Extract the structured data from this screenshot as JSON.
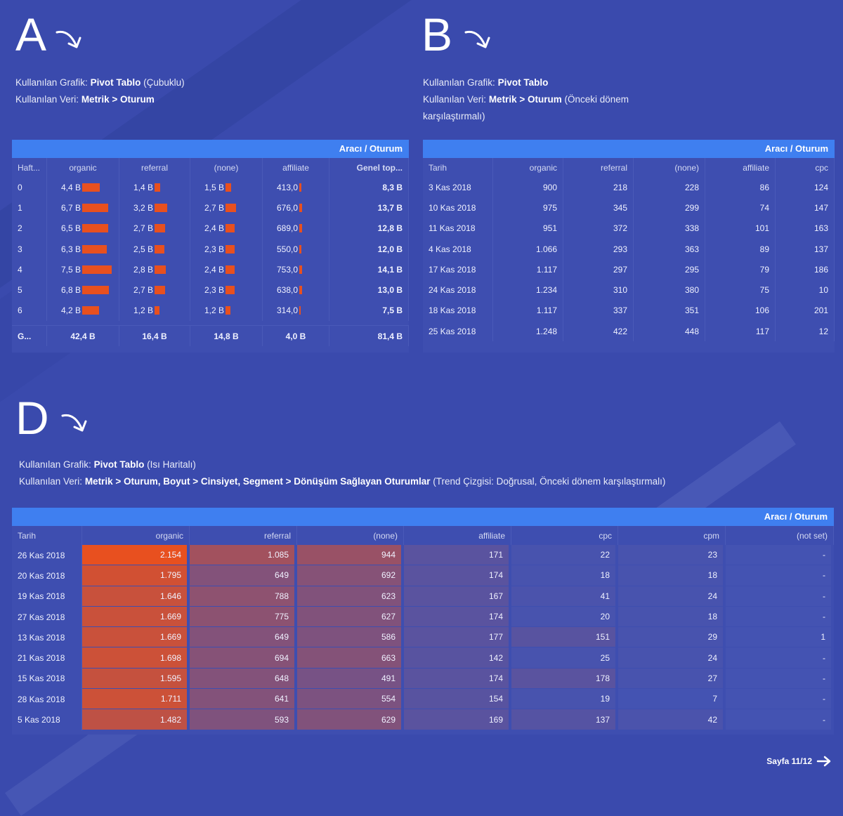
{
  "sectionA": {
    "letter": "A",
    "line1_prefix": "Kullanılan Grafik: ",
    "line1_bold": "Pivot Tablo",
    "line1_suffix": " (Çubuklu)",
    "line2_prefix": "Kullanılan Veri: ",
    "line2_bold": "Metrik > Oturum",
    "line2_suffix": "",
    "table_header": "Aracı / Oturum",
    "columns": [
      "Haft...",
      "organic",
      "referral",
      "(none)",
      "affiliate",
      "Genel top..."
    ],
    "rows": [
      {
        "week": "0",
        "organic": "4,4 B",
        "organic_frac": 0.59,
        "referral": "1,4 B",
        "referral_frac": 0.19,
        "none": "1,5 B",
        "none_frac": 0.2,
        "affiliate": "413,0",
        "affiliate_frac": 0.06,
        "total": "8,3 B"
      },
      {
        "week": "1",
        "organic": "6,7 B",
        "organic_frac": 0.89,
        "referral": "3,2 B",
        "referral_frac": 0.43,
        "none": "2,7 B",
        "none_frac": 0.36,
        "affiliate": "676,0",
        "affiliate_frac": 0.09,
        "total": "13,7 B"
      },
      {
        "week": "2",
        "organic": "6,5 B",
        "organic_frac": 0.87,
        "referral": "2,7 B",
        "referral_frac": 0.36,
        "none": "2,4 B",
        "none_frac": 0.32,
        "affiliate": "689,0",
        "affiliate_frac": 0.09,
        "total": "12,8 B"
      },
      {
        "week": "3",
        "organic": "6,3 B",
        "organic_frac": 0.84,
        "referral": "2,5 B",
        "referral_frac": 0.33,
        "none": "2,3 B",
        "none_frac": 0.31,
        "affiliate": "550,0",
        "affiliate_frac": 0.07,
        "total": "12,0 B"
      },
      {
        "week": "4",
        "organic": "7,5 B",
        "organic_frac": 1.0,
        "referral": "2,8 B",
        "referral_frac": 0.37,
        "none": "2,4 B",
        "none_frac": 0.32,
        "affiliate": "753,0",
        "affiliate_frac": 0.1,
        "total": "14,1 B"
      },
      {
        "week": "5",
        "organic": "6,8 B",
        "organic_frac": 0.91,
        "referral": "2,7 B",
        "referral_frac": 0.36,
        "none": "2,3 B",
        "none_frac": 0.31,
        "affiliate": "638,0",
        "affiliate_frac": 0.09,
        "total": "13,0 B"
      },
      {
        "week": "6",
        "organic": "4,2 B",
        "organic_frac": 0.56,
        "referral": "1,2 B",
        "referral_frac": 0.16,
        "none": "1,2 B",
        "none_frac": 0.16,
        "affiliate": "314,0",
        "affiliate_frac": 0.04,
        "total": "7,5 B"
      }
    ],
    "footer": {
      "label": "G...",
      "organic": "42,4 B",
      "referral": "16,4 B",
      "none": "14,8 B",
      "affiliate": "4,0 B",
      "total": "81,4 B"
    }
  },
  "sectionB": {
    "letter": "B",
    "line1_prefix": "Kullanılan Grafik: ",
    "line1_bold": "Pivot Tablo",
    "line1_suffix": "",
    "line2_prefix": "Kullanılan Veri: ",
    "line2_bold": "Metrik > Oturum",
    "line2_suffix": " (Önceki dönem karşılaştırmalı)",
    "table_header": "Aracı / Oturum",
    "columns": [
      "Tarih",
      "organic",
      "referral",
      "(none)",
      "affiliate",
      "cpc"
    ],
    "rows": [
      [
        "3 Kas 2018",
        "900",
        "218",
        "228",
        "86",
        "124"
      ],
      [
        "10 Kas 2018",
        "975",
        "345",
        "299",
        "74",
        "147"
      ],
      [
        "11 Kas 2018",
        "951",
        "372",
        "338",
        "101",
        "163"
      ],
      [
        "4 Kas 2018",
        "1.066",
        "293",
        "363",
        "89",
        "137"
      ],
      [
        "17 Kas 2018",
        "1.117",
        "297",
        "295",
        "79",
        "186"
      ],
      [
        "24 Kas 2018",
        "1.234",
        "310",
        "380",
        "75",
        "10"
      ],
      [
        "18 Kas 2018",
        "1.117",
        "337",
        "351",
        "106",
        "201"
      ],
      [
        "25 Kas 2018",
        "1.248",
        "422",
        "448",
        "117",
        "12"
      ]
    ]
  },
  "sectionD": {
    "letter": "D",
    "line1_prefix": "Kullanılan Grafik: ",
    "line1_bold": "Pivot Tablo",
    "line1_suffix": " (Isı Haritalı)",
    "line2_prefix": "Kullanılan Veri: ",
    "line2_bold": "Metrik > Oturum, Boyut > Cinsiyet, Segment > Dönüşüm Sağlayan Oturumlar",
    "line2_suffix": " (Trend Çizgisi: Doğrusal, Önceki dönem karşılaştırmalı)",
    "table_header": "Aracı / Oturum",
    "columns": [
      "Tarih",
      "organic",
      "referral",
      "(none)",
      "affiliate",
      "cpc",
      "cpm",
      "(not set)"
    ],
    "rows": [
      {
        "cells": [
          "26 Kas 2018",
          "2.154",
          "1.085",
          "944",
          "171",
          "22",
          "23",
          "-"
        ],
        "heat": [
          1.0,
          0.5,
          0.44,
          0.08,
          0.01,
          0.01,
          0
        ]
      },
      {
        "cells": [
          "20 Kas 2018",
          "1.795",
          "649",
          "692",
          "174",
          "18",
          "18",
          "-"
        ],
        "heat": [
          0.83,
          0.3,
          0.32,
          0.08,
          0.01,
          0.01,
          0
        ]
      },
      {
        "cells": [
          "19 Kas 2018",
          "1.646",
          "788",
          "623",
          "167",
          "41",
          "24",
          "-"
        ],
        "heat": [
          0.76,
          0.37,
          0.29,
          0.08,
          0.02,
          0.01,
          0
        ]
      },
      {
        "cells": [
          "27 Kas 2018",
          "1.669",
          "775",
          "627",
          "174",
          "20",
          "18",
          "-"
        ],
        "heat": [
          0.77,
          0.36,
          0.29,
          0.08,
          0.01,
          0.01,
          0
        ]
      },
      {
        "cells": [
          "13 Kas 2018",
          "1.669",
          "649",
          "586",
          "177",
          "151",
          "29",
          "1"
        ],
        "heat": [
          0.77,
          0.3,
          0.27,
          0.08,
          0.07,
          0.01,
          0
        ]
      },
      {
        "cells": [
          "21 Kas 2018",
          "1.698",
          "694",
          "663",
          "142",
          "25",
          "24",
          "-"
        ],
        "heat": [
          0.79,
          0.32,
          0.31,
          0.07,
          0.01,
          0.01,
          0
        ]
      },
      {
        "cells": [
          "15 Kas 2018",
          "1.595",
          "648",
          "491",
          "174",
          "178",
          "27",
          "-"
        ],
        "heat": [
          0.74,
          0.3,
          0.23,
          0.08,
          0.08,
          0.01,
          0
        ]
      },
      {
        "cells": [
          "28 Kas 2018",
          "1.711",
          "641",
          "554",
          "154",
          "19",
          "7",
          "-"
        ],
        "heat": [
          0.79,
          0.3,
          0.26,
          0.07,
          0.01,
          0,
          0
        ]
      },
      {
        "cells": [
          "5 Kas 2018",
          "1.482",
          "593",
          "629",
          "169",
          "137",
          "42",
          "-"
        ],
        "heat": [
          0.69,
          0.28,
          0.29,
          0.08,
          0.06,
          0.02,
          0
        ]
      }
    ]
  },
  "pager": {
    "label": "Sayfa 11/12",
    "icon": "arrow-right-icon"
  },
  "colors": {
    "background": "#3a4aad",
    "table_header": "#3f7ff0",
    "bar": "#e8501f",
    "heat_high": "#e8501f",
    "heat_low": "#4453b2"
  }
}
